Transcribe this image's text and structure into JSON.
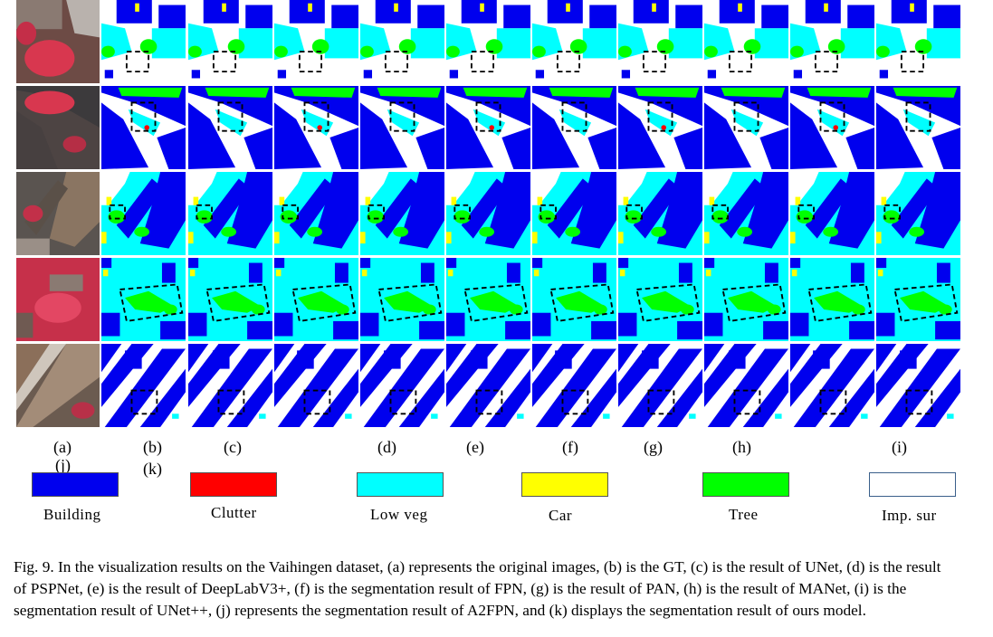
{
  "figure": {
    "panel_labels_row1": [
      "(a)",
      "(b)",
      "(c)",
      "(d)",
      "(e)",
      "(f)",
      "(g)",
      "(h)",
      "(i)"
    ],
    "panel_labels_row2": [
      "(j)",
      "(k)"
    ],
    "legend": [
      {
        "label": "Building",
        "color": "#0000ee"
      },
      {
        "label": "Clutter",
        "color": "#ff0000"
      },
      {
        "label": "Low veg",
        "color": "#00ffff"
      },
      {
        "label": "Car",
        "color": "#ffff00"
      },
      {
        "label": "Tree",
        "color": "#00ff00"
      },
      {
        "label": "Imp. sur",
        "color": "#ffffff"
      }
    ],
    "caption": "Fig. 9. In the visualization results on the Vaihingen dataset, (a) represents the original images, (b) is the GT, (c) is the result of  UNet, (d) is the result of PSPNet, (e) is the result of DeepLabV3+, (f) is the segmentation result of FPN, (g) is the result of PAN, (h) is the result of MANet, (i) is the segmentation result of UNet++, (j) represents the segmentation result of A2FPN, and (k) displays the segmentation result of ours model."
  }
}
